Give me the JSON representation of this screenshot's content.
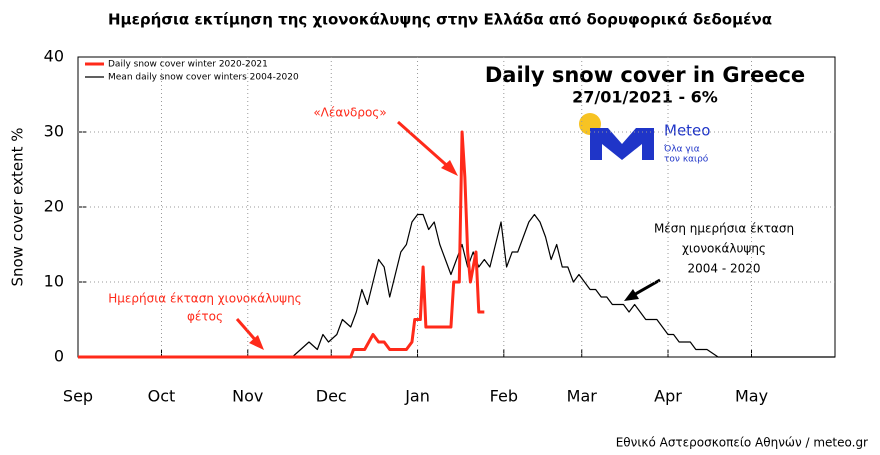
{
  "chart_data": {
    "type": "line",
    "title": "Ημερήσια εκτίμηση της χιονοκάλυψης στην Ελλάδα από δορυφορικά δεδομένα",
    "heading": "Daily snow cover in Greece",
    "subheading": "27/01/2021 - 6%",
    "ylabel": "Snow cover extent %",
    "xlim": [
      0,
      272
    ],
    "ylim": [
      0,
      40
    ],
    "yticks": [
      0,
      10,
      20,
      30,
      40
    ],
    "xticks": [
      {
        "value": 0,
        "label": "Sep"
      },
      {
        "value": 30,
        "label": "Oct"
      },
      {
        "value": 61,
        "label": "Nov"
      },
      {
        "value": 91,
        "label": "Dec"
      },
      {
        "value": 122,
        "label": "Jan"
      },
      {
        "value": 153,
        "label": "Feb"
      },
      {
        "value": 181,
        "label": "Mar"
      },
      {
        "value": 212,
        "label": "Apr"
      },
      {
        "value": 242,
        "label": "May"
      }
    ],
    "grid": true,
    "legend": "top-left",
    "series": [
      {
        "name": "Daily snow cover winter 2020-2021",
        "color": "#ff2a1a",
        "x": [
          0,
          98,
          99,
          103,
          106,
          108,
          110,
          112,
          118,
          120,
          121,
          123,
          124,
          125,
          134,
          135,
          137,
          138,
          139,
          140,
          141,
          143,
          144,
          146
        ],
        "values": [
          0,
          0,
          1,
          1,
          3,
          2,
          2,
          1,
          1,
          2,
          5,
          5,
          12,
          4,
          4,
          10,
          10,
          30,
          24,
          14,
          10,
          14,
          6,
          6
        ]
      },
      {
        "name": "Mean daily snow cover winters 2004-2020",
        "color": "#000000",
        "x": [
          0,
          77,
          80,
          83,
          86,
          88,
          90,
          93,
          95,
          98,
          100,
          102,
          104,
          106,
          108,
          110,
          112,
          114,
          116,
          118,
          120,
          122,
          124,
          126,
          128,
          130,
          132,
          134,
          136,
          138,
          140,
          142,
          144,
          146,
          148,
          150,
          152,
          154,
          156,
          158,
          160,
          162,
          164,
          166,
          168,
          170,
          172,
          174,
          176,
          178,
          180,
          182,
          184,
          186,
          188,
          190,
          192,
          196,
          198,
          200,
          202,
          204,
          208,
          210,
          212,
          214,
          216,
          220,
          222,
          226,
          230,
          272
        ],
        "values": [
          0,
          0,
          1,
          2,
          1,
          3,
          2,
          3,
          5,
          4,
          6,
          9,
          7,
          10,
          13,
          12,
          8,
          11,
          14,
          15,
          18,
          19,
          19,
          17,
          18,
          15,
          13,
          11,
          13,
          15,
          12,
          14,
          12,
          13,
          12,
          15,
          18,
          12,
          14,
          14,
          16,
          18,
          19,
          18,
          16,
          13,
          15,
          12,
          12,
          10,
          11,
          10,
          9,
          9,
          8,
          8,
          7,
          7,
          6,
          7,
          6,
          5,
          5,
          4,
          3,
          3,
          2,
          2,
          1,
          1,
          0,
          0
        ]
      }
    ],
    "annotations": {
      "event": "«Λέανδρος»",
      "current": [
        "Ημερήσια έκταση χιονοκάλυψης",
        "φέτος"
      ],
      "mean": [
        "Μέση ημερήσια έκταση",
        "χιονοκάλυψης",
        "2004 - 2020"
      ]
    },
    "logo": {
      "name": "Meteo",
      "slogan": [
        "Όλα για",
        "τον καιρό"
      ]
    },
    "source": "Εθνικό Αστεροσκοπείο Αθηνών / meteo.gr"
  }
}
